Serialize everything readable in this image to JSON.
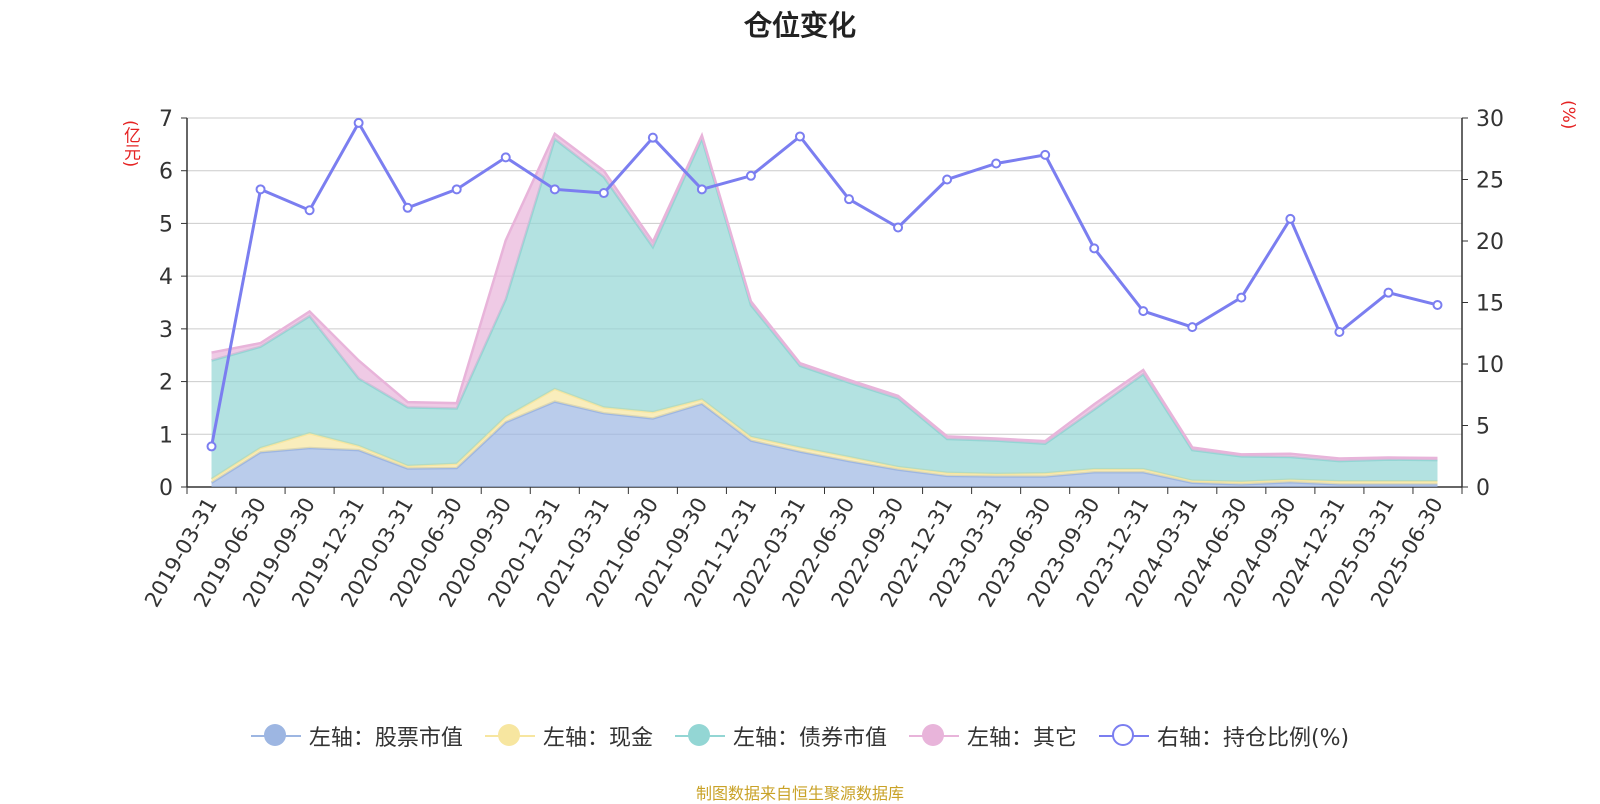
{
  "title": "仓位变化",
  "left_unit": "(亿元)",
  "right_unit": "(%)",
  "source": "制图数据来自恒生聚源数据库",
  "colors": {
    "stock": "#9db6e2",
    "cash": "#f7e6a0",
    "bond": "#93d6d4",
    "other": "#e8b4da",
    "ratio": "#7b7ef0",
    "grid": "#cccccc",
    "axis": "#333333"
  },
  "chart_data": {
    "type": "area",
    "title": "仓位变化",
    "categories": [
      "2019-03-31",
      "2019-06-30",
      "2019-09-30",
      "2019-12-31",
      "2020-03-31",
      "2020-06-30",
      "2020-09-30",
      "2020-12-31",
      "2021-03-31",
      "2021-06-30",
      "2021-09-30",
      "2021-12-31",
      "2022-03-31",
      "2022-06-30",
      "2022-09-30",
      "2022-12-31",
      "2023-03-31",
      "2023-06-30",
      "2023-09-30",
      "2023-12-31",
      "2024-03-31",
      "2024-06-30",
      "2024-09-30",
      "2024-12-31",
      "2025-03-31",
      "2025-06-30"
    ],
    "left_axis": {
      "ylim": [
        0,
        7
      ],
      "ticks": [
        0,
        1,
        2,
        3,
        4,
        5,
        6,
        7
      ]
    },
    "right_axis": {
      "ylim": [
        0,
        30
      ],
      "ticks": [
        0,
        5,
        10,
        15,
        20,
        25,
        30
      ]
    },
    "series": [
      {
        "name": "左轴：股票市值",
        "axis": "left",
        "stacked": true,
        "values": [
          0.08,
          0.66,
          0.74,
          0.7,
          0.35,
          0.36,
          1.23,
          1.62,
          1.4,
          1.3,
          1.58,
          0.88,
          0.67,
          0.49,
          0.33,
          0.21,
          0.2,
          0.2,
          0.28,
          0.28,
          0.08,
          0.05,
          0.09,
          0.05,
          0.05,
          0.05
        ]
      },
      {
        "name": "左轴：现金",
        "axis": "left",
        "stacked": true,
        "values": [
          0.07,
          0.08,
          0.28,
          0.08,
          0.05,
          0.08,
          0.1,
          0.24,
          0.11,
          0.12,
          0.08,
          0.07,
          0.08,
          0.08,
          0.05,
          0.06,
          0.05,
          0.06,
          0.06,
          0.06,
          0.04,
          0.05,
          0.05,
          0.06,
          0.06,
          0.06
        ]
      },
      {
        "name": "左轴：债券市值",
        "axis": "left",
        "stacked": true,
        "values": [
          2.25,
          1.92,
          2.22,
          1.28,
          1.11,
          1.05,
          2.23,
          4.74,
          4.37,
          3.13,
          4.95,
          2.5,
          1.55,
          1.41,
          1.3,
          0.64,
          0.63,
          0.56,
          1.13,
          1.8,
          0.58,
          0.48,
          0.43,
          0.38,
          0.41,
          0.4
        ]
      },
      {
        "name": "左轴：其它",
        "axis": "left",
        "stacked": true,
        "values": [
          0.15,
          0.07,
          0.09,
          0.34,
          0.1,
          0.1,
          1.12,
          0.1,
          0.12,
          0.1,
          0.06,
          0.07,
          0.05,
          0.05,
          0.05,
          0.05,
          0.04,
          0.05,
          0.1,
          0.08,
          0.05,
          0.04,
          0.06,
          0.05,
          0.04,
          0.04
        ]
      },
      {
        "name": "右轴：持仓比例(%)",
        "axis": "right",
        "type": "line",
        "values": [
          3.3,
          24.2,
          22.5,
          29.6,
          22.7,
          24.2,
          26.8,
          24.2,
          23.9,
          28.4,
          24.2,
          25.3,
          28.5,
          23.4,
          21.1,
          25.0,
          26.3,
          27.0,
          19.4,
          14.3,
          13.0,
          15.4,
          21.8,
          12.6,
          15.8,
          14.8
        ]
      }
    ]
  },
  "legend": [
    {
      "key": "stock",
      "label": "左轴：股票市值",
      "hollow": false
    },
    {
      "key": "cash",
      "label": "左轴：现金",
      "hollow": false
    },
    {
      "key": "bond",
      "label": "左轴：债券市值",
      "hollow": false
    },
    {
      "key": "other",
      "label": "左轴：其它",
      "hollow": false
    },
    {
      "key": "ratio",
      "label": "右轴：持仓比例(%)",
      "hollow": true
    }
  ]
}
